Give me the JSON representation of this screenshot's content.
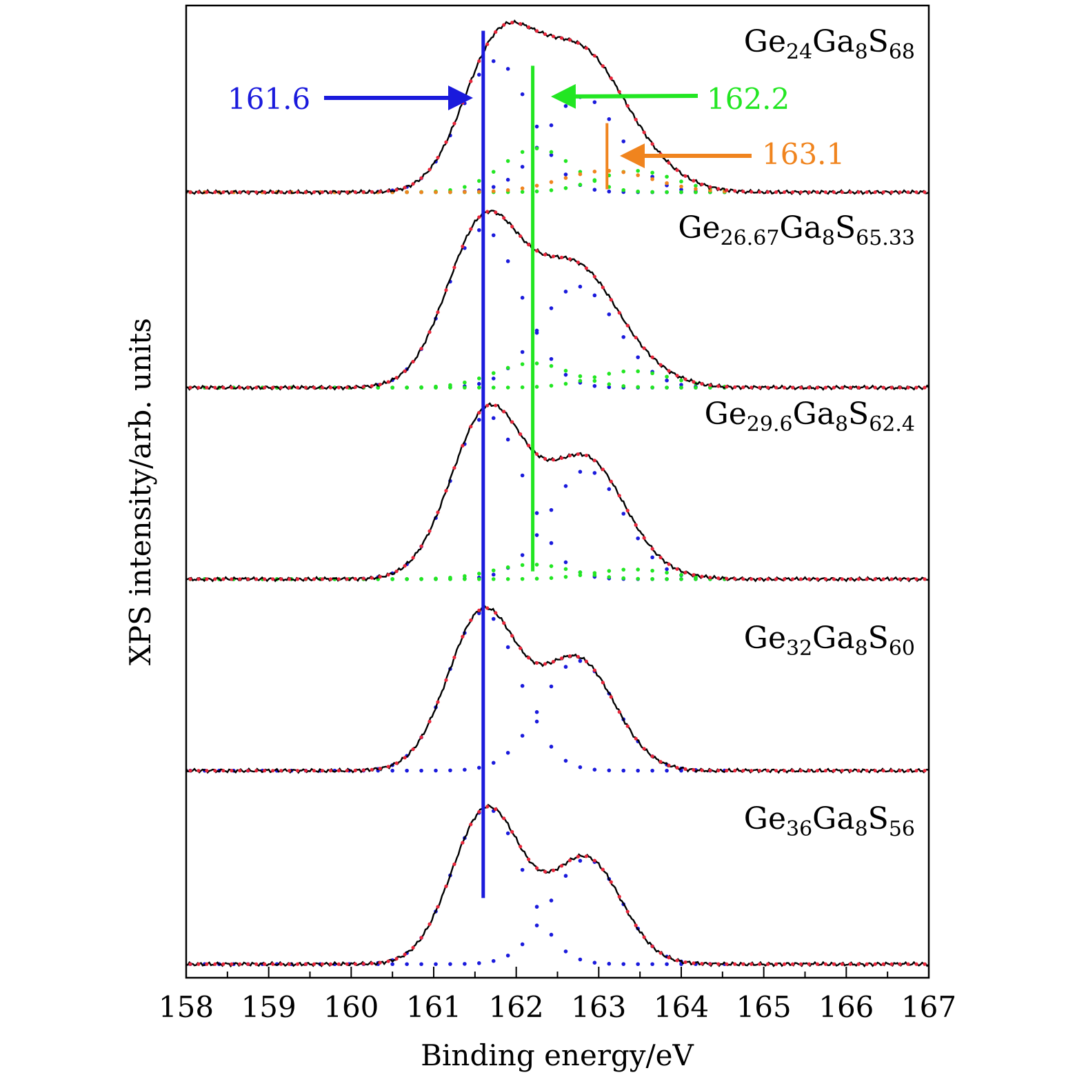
{
  "chart_data": {
    "type": "line",
    "xlabel": "Binding energy/eV",
    "ylabel": "XPS intensity/arb. units",
    "xlim": [
      167,
      158
    ],
    "x_axis_direction": "increasing left-to-right",
    "x_ticks": [
      "158",
      "159",
      "160",
      "161",
      "162",
      "163",
      "164",
      "165",
      "166",
      "167"
    ],
    "y_ticks": [],
    "ylim": [
      0,
      10
    ],
    "grid": false,
    "legend": "none",
    "colors": {
      "measured": "#e8263a",
      "fit_total": "#000000",
      "component_main": "#1a1adc",
      "component_green": "#22e622",
      "component_orange": "#f0841e"
    },
    "series": [
      {
        "label_parts": [
          [
            "Ge",
            "24"
          ],
          [
            "Ga",
            "8"
          ],
          [
            "S",
            "68"
          ]
        ],
        "baseline": 8.08,
        "components": [
          {
            "color": "blue",
            "center": 161.75,
            "fwhm": 1.0,
            "height": 1.35
          },
          {
            "color": "blue",
            "center": 162.8,
            "fwhm": 1.05,
            "height": 0.98
          },
          {
            "color": "green",
            "center": 162.25,
            "fwhm": 1.0,
            "height": 0.45
          },
          {
            "color": "green",
            "center": 163.45,
            "fwhm": 1.1,
            "height": 0.22
          },
          {
            "color": "orange",
            "center": 163.1,
            "fwhm": 1.3,
            "height": 0.22
          }
        ]
      },
      {
        "label_parts": [
          [
            "Ge",
            "26.67"
          ],
          [
            "Ga",
            "8"
          ],
          [
            "S",
            "65.33"
          ]
        ],
        "baseline": 6.07,
        "components": [
          {
            "color": "blue",
            "center": 161.6,
            "fwhm": 1.05,
            "height": 1.63
          },
          {
            "color": "blue",
            "center": 162.75,
            "fwhm": 1.1,
            "height": 1.04
          },
          {
            "color": "green",
            "center": 162.2,
            "fwhm": 1.1,
            "height": 0.25
          },
          {
            "color": "green",
            "center": 163.4,
            "fwhm": 1.1,
            "height": 0.17
          }
        ]
      },
      {
        "label_parts": [
          [
            "Ge",
            "29.6"
          ],
          [
            "Ga",
            "8"
          ],
          [
            "S",
            "62.4"
          ]
        ],
        "baseline": 4.1,
        "components": [
          {
            "color": "blue",
            "center": 161.65,
            "fwhm": 1.05,
            "height": 1.68
          },
          {
            "color": "blue",
            "center": 162.85,
            "fwhm": 1.05,
            "height": 1.12
          },
          {
            "color": "green",
            "center": 162.2,
            "fwhm": 1.1,
            "height": 0.15
          },
          {
            "color": "green",
            "center": 163.4,
            "fwhm": 1.1,
            "height": 0.1
          }
        ]
      },
      {
        "label_parts": [
          [
            "Ge",
            "32"
          ],
          [
            "Ga",
            "8"
          ],
          [
            "S",
            "60"
          ]
        ],
        "baseline": 2.13,
        "components": [
          {
            "color": "blue",
            "center": 161.6,
            "fwhm": 1.0,
            "height": 1.63
          },
          {
            "color": "blue",
            "center": 162.75,
            "fwhm": 1.05,
            "height": 1.13
          }
        ]
      },
      {
        "label_parts": [
          [
            "Ge",
            "36"
          ],
          [
            "Ga",
            "8"
          ],
          [
            "S",
            "56"
          ]
        ],
        "baseline": 0.14,
        "components": [
          {
            "color": "blue",
            "center": 161.65,
            "fwhm": 1.0,
            "height": 1.6
          },
          {
            "color": "blue",
            "center": 162.85,
            "fwhm": 1.0,
            "height": 1.08
          }
        ]
      }
    ],
    "annotations": [
      {
        "text": "161.6",
        "x": 161.6,
        "color": "#1a1adc",
        "line_y": [
          0.82,
          9.74
        ]
      },
      {
        "text": "162.2",
        "x": 162.2,
        "color": "#22e622",
        "line_y": [
          4.18,
          9.38
        ]
      },
      {
        "text": "163.1",
        "x": 163.1,
        "color": "#f0841e",
        "line_y": [
          8.11,
          8.79
        ]
      }
    ]
  }
}
